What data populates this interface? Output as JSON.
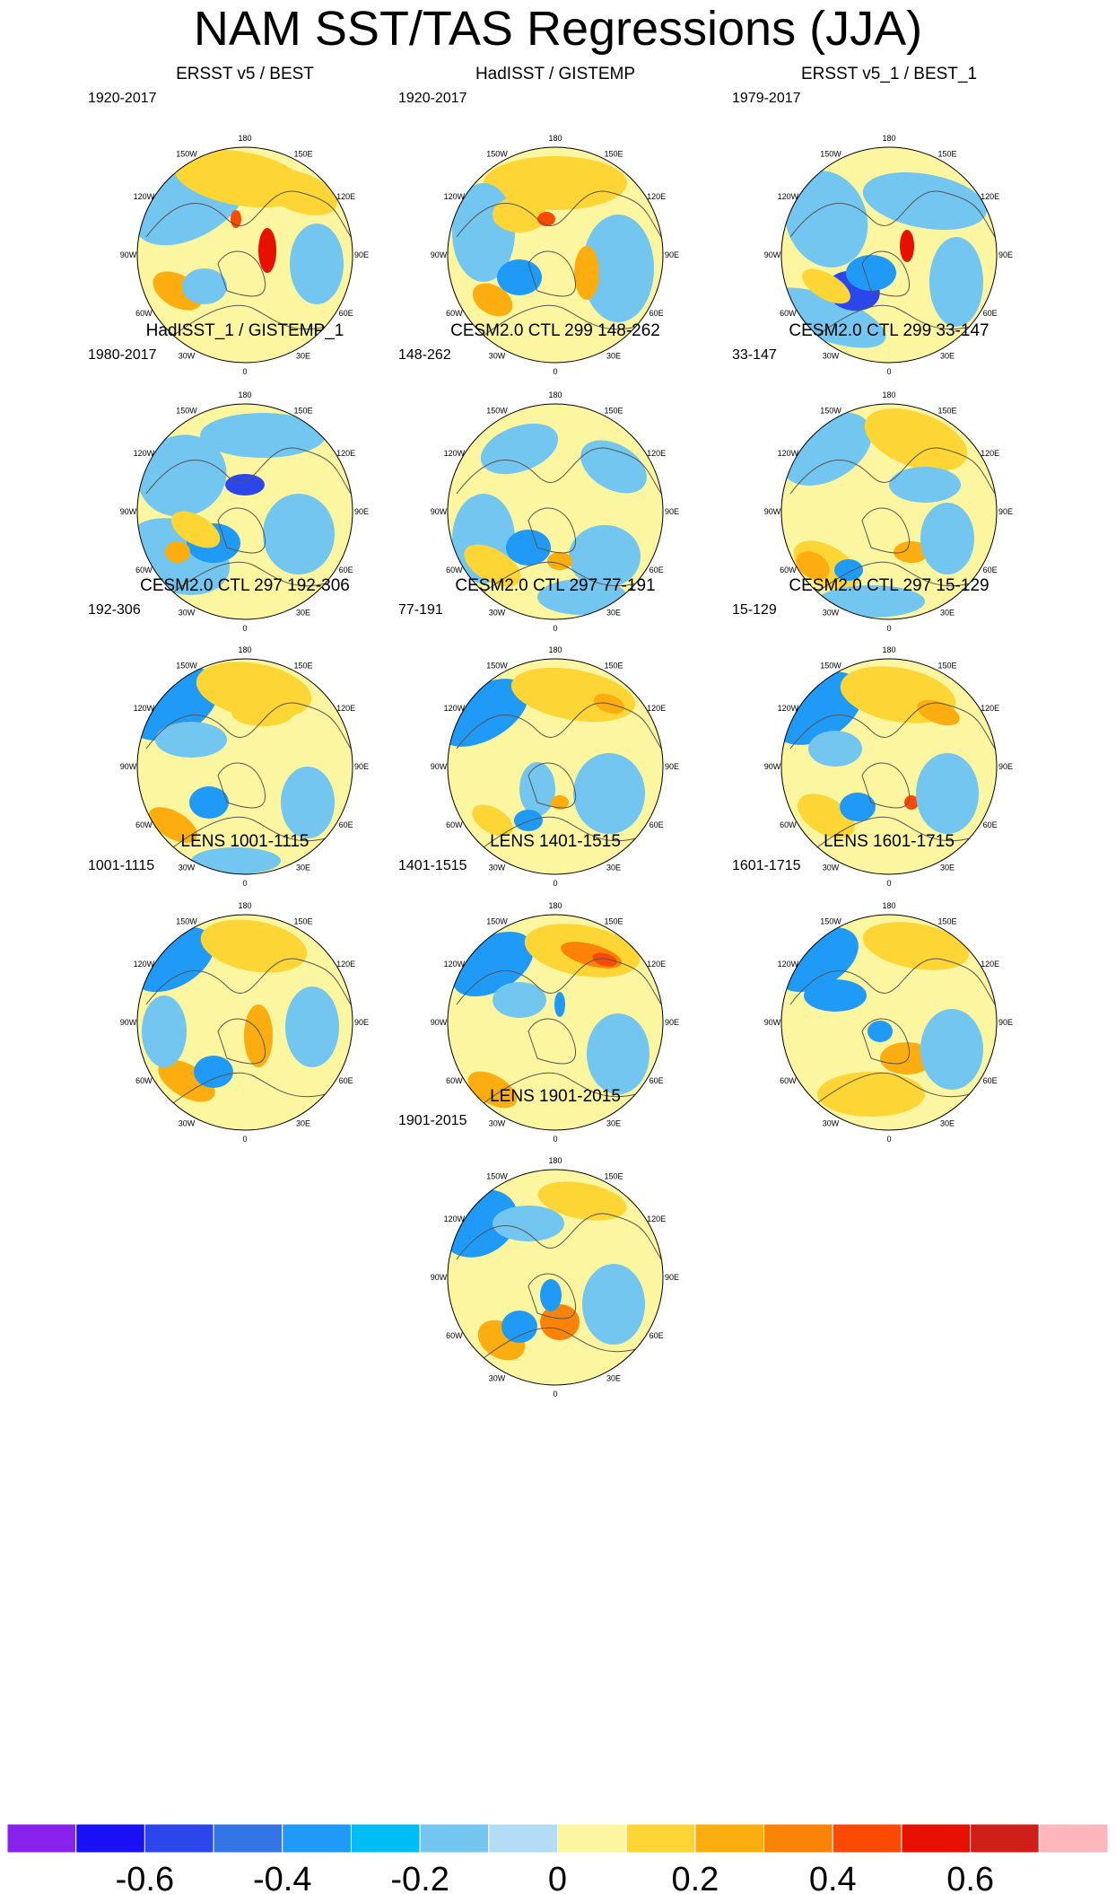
{
  "figure": {
    "title": "NAM SST/TAS Regressions (JJA)"
  },
  "longitude_labels": [
    "180",
    "150E",
    "120E",
    "90E",
    "60E",
    "30E",
    "0",
    "30W",
    "60W",
    "90W",
    "120W",
    "150W"
  ],
  "panels": [
    {
      "title": "ERSST v5 / BEST",
      "period": "1920-2017"
    },
    {
      "title": "HadISST / GISTEMP",
      "period": "1920-2017"
    },
    {
      "title": "ERSST v5_1 / BEST_1",
      "period": "1979-2017"
    },
    {
      "title": "HadISST_1 / GISTEMP_1",
      "period": "1980-2017"
    },
    {
      "title": "CESM2.0 CTL 299 148-262",
      "period": "148-262"
    },
    {
      "title": "CESM2.0 CTL 299 33-147",
      "period": "33-147"
    },
    {
      "title": "CESM2.0 CTL 297 192-306",
      "period": "192-306"
    },
    {
      "title": "CESM2.0 CTL 297 77-191",
      "period": "77-191"
    },
    {
      "title": "CESM2.0 CTL 297 15-129",
      "period": "15-129"
    },
    {
      "title": "LENS 1001-1115",
      "period": "1001-1115"
    },
    {
      "title": "LENS 1401-1515",
      "period": "1401-1515"
    },
    {
      "title": "LENS 1601-1715",
      "period": "1601-1715"
    },
    {
      "title": "LENS 1901-2015",
      "period": "1901-2015"
    }
  ],
  "colorbar": {
    "colors": [
      "#8a22ee",
      "#1a10f5",
      "#2b47ec",
      "#3475e6",
      "#1f9af6",
      "#00bcf5",
      "#72c6ef",
      "#b3ddf4",
      "#fdf6a0",
      "#fdd535",
      "#fcad0f",
      "#fb8407",
      "#fc4a03",
      "#e81002",
      "#d01f18",
      "#fdb7bc"
    ],
    "labels": [
      "-0.6",
      "-0.4",
      "-0.2",
      "0",
      "0.2",
      "0.4",
      "0.6"
    ],
    "label_values": [
      -0.6,
      -0.4,
      -0.2,
      0,
      0.2,
      0.4,
      0.6
    ],
    "levels": [
      -0.7,
      -0.6,
      -0.5,
      -0.4,
      -0.3,
      -0.2,
      -0.1,
      0,
      0.1,
      0.2,
      0.3,
      0.4,
      0.5,
      0.6,
      0.7
    ]
  },
  "chart_data": {
    "type": "heatmap",
    "title": "NAM SST/TAS Regressions (JJA)",
    "projection": "north polar stereographic",
    "season": "JJA",
    "colorbar_range": [
      -0.7,
      0.7
    ],
    "panels": [
      "ERSST v5 / BEST",
      "HadISST / GISTEMP",
      "ERSST v5_1 / BEST_1",
      "HadISST_1 / GISTEMP_1",
      "CESM2.0 CTL 299 148-262",
      "CESM2.0 CTL 299 33-147",
      "CESM2.0 CTL 297 192-306",
      "CESM2.0 CTL 297 77-191",
      "CESM2.0 CTL 297 15-129",
      "LENS 1001-1115",
      "LENS 1401-1515",
      "LENS 1601-1715",
      "LENS 1901-2015"
    ]
  }
}
